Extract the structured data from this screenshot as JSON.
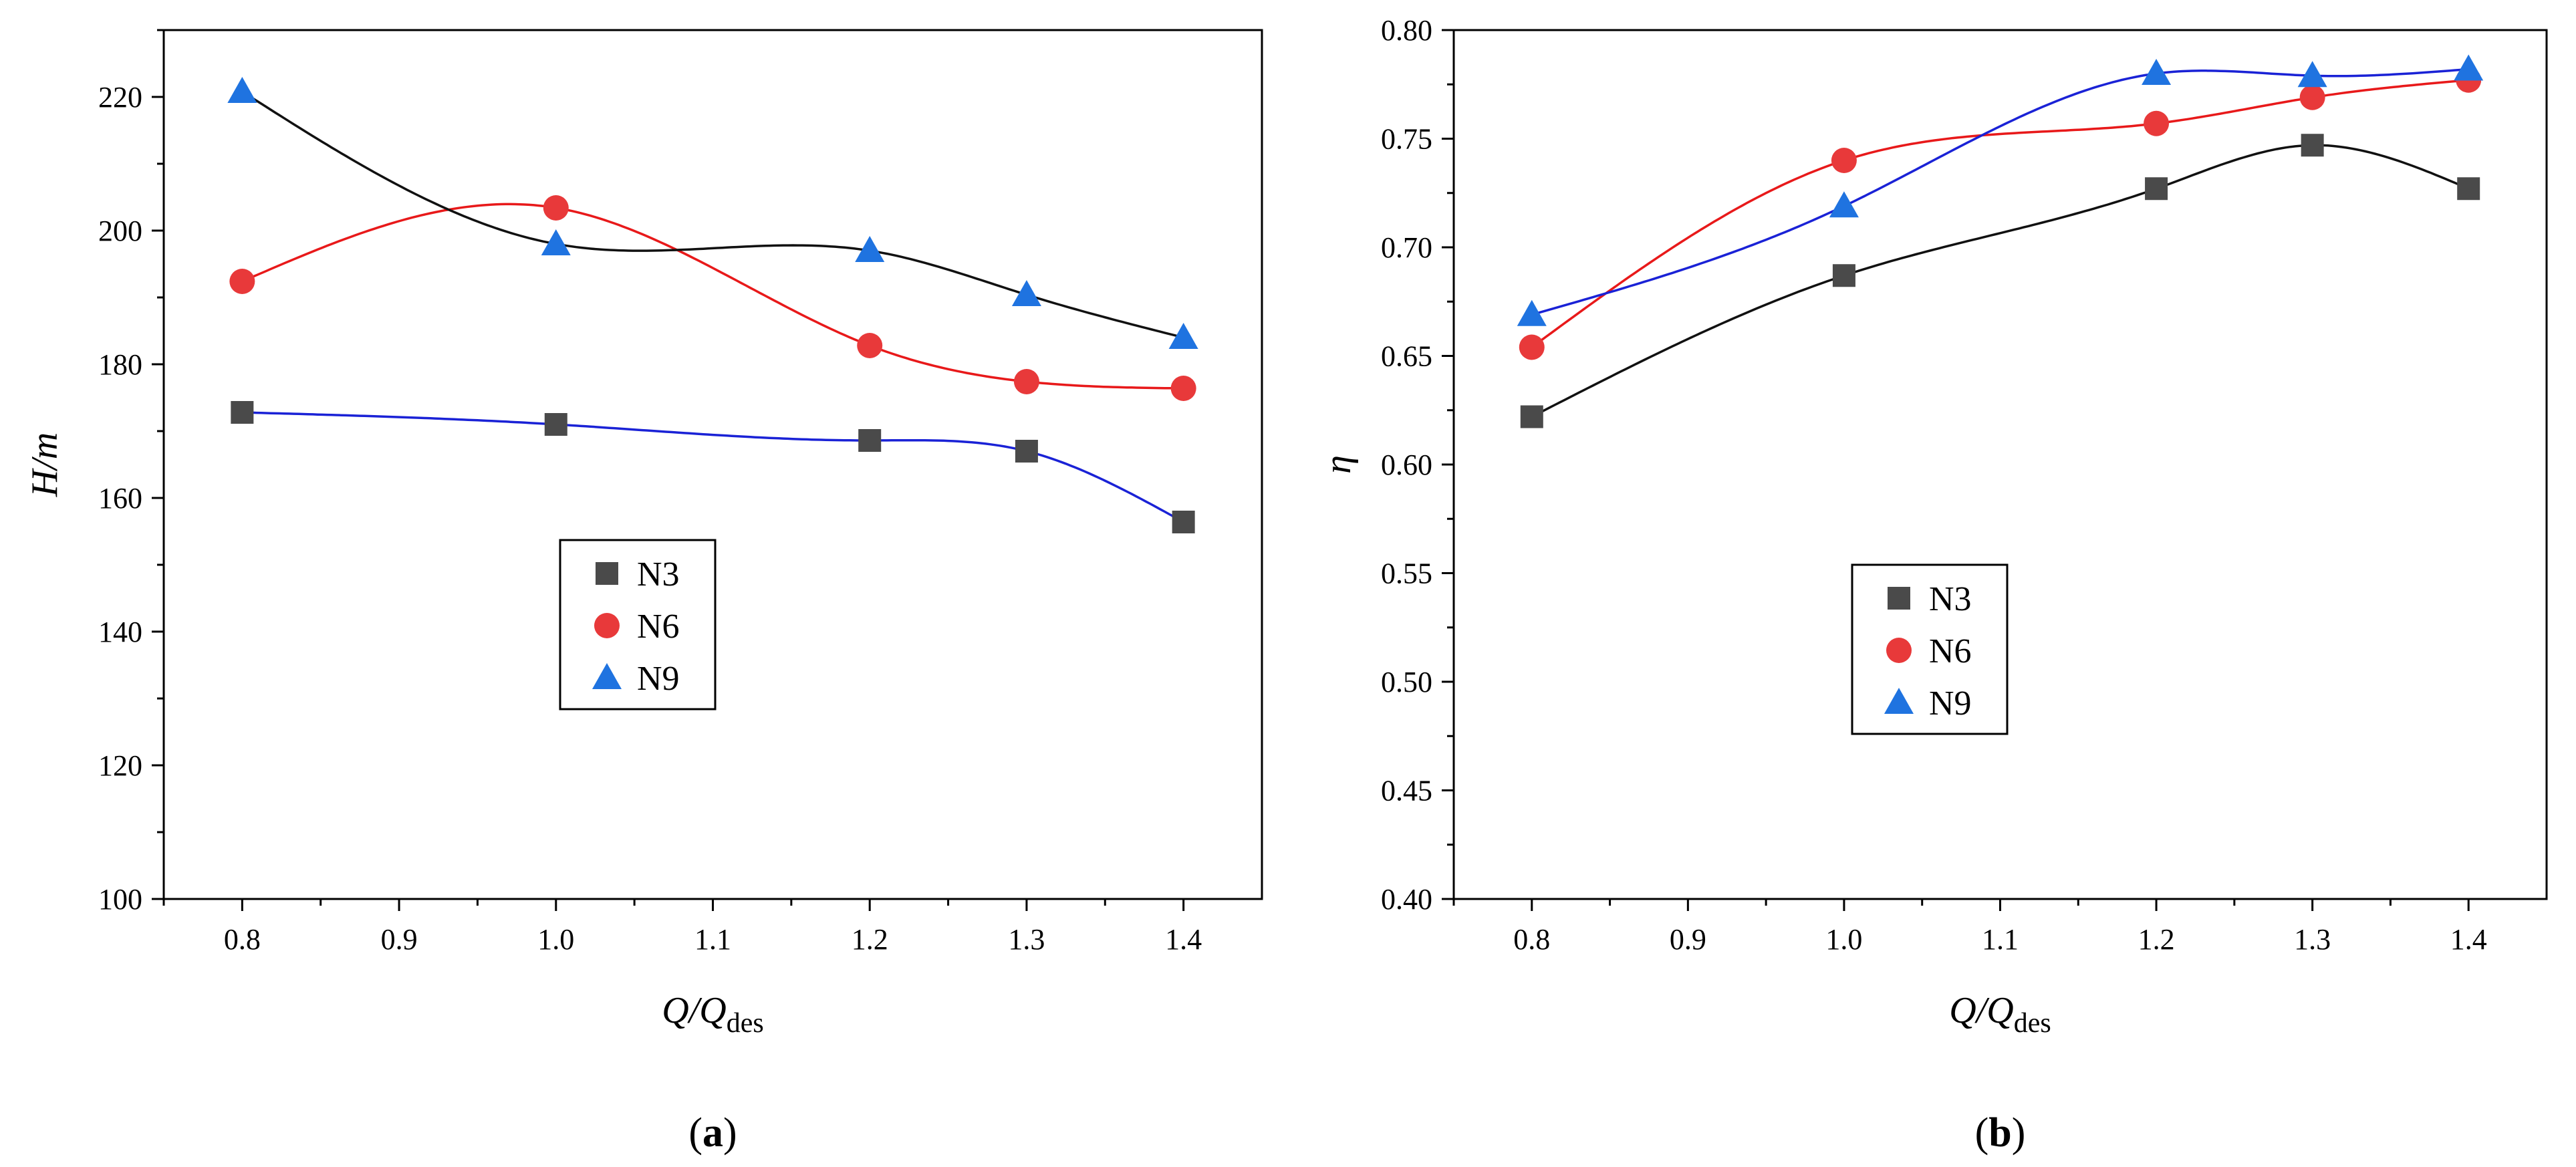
{
  "chart_data": [
    {
      "type": "scatter",
      "panel_label": "a",
      "xlabel": "Q/Q",
      "xlabel_sub": "des",
      "ylabel": "H/m",
      "xlim": [
        0.75,
        1.45
      ],
      "ylim": [
        100,
        230
      ],
      "xticks": [
        0.8,
        0.9,
        1.0,
        1.1,
        1.2,
        1.3,
        1.4
      ],
      "xtick_labels": [
        "0.8",
        "0.9",
        "1.0",
        "1.1",
        "1.2",
        "1.3",
        "1.4"
      ],
      "yticks": [
        100,
        120,
        140,
        160,
        180,
        200,
        220
      ],
      "ytick_labels": [
        "100",
        "120",
        "140",
        "160",
        "180",
        "200",
        "220"
      ],
      "legend": [
        "N3",
        "N6",
        "N9"
      ],
      "series": [
        {
          "name": "N3",
          "marker": "square",
          "color": "#4a4a4a",
          "line_color": "#1a22d6",
          "x": [
            0.8,
            1.0,
            1.2,
            1.3,
            1.4
          ],
          "y": [
            172.8,
            171.0,
            168.6,
            167.0,
            156.4
          ]
        },
        {
          "name": "N6",
          "marker": "circle",
          "color": "#e8393a",
          "line_color": "#e8191a",
          "x": [
            0.8,
            1.0,
            1.2,
            1.3,
            1.4
          ],
          "y": [
            192.4,
            203.4,
            182.8,
            177.4,
            176.4
          ]
        },
        {
          "name": "N9",
          "marker": "triangle",
          "color": "#1f73e0",
          "line_color": "#111111",
          "x": [
            0.8,
            1.0,
            1.2,
            1.3,
            1.4
          ],
          "y": [
            220.8,
            198.0,
            197.0,
            190.4,
            184.0
          ]
        }
      ]
    },
    {
      "type": "scatter",
      "panel_label": "b",
      "xlabel": "Q/Q",
      "xlabel_sub": "des",
      "ylabel": "η",
      "xlim": [
        0.75,
        1.45
      ],
      "ylim": [
        0.4,
        0.8
      ],
      "xticks": [
        0.8,
        0.9,
        1.0,
        1.1,
        1.2,
        1.3,
        1.4
      ],
      "xtick_labels": [
        "0.8",
        "0.9",
        "1.0",
        "1.1",
        "1.2",
        "1.3",
        "1.4"
      ],
      "yticks": [
        0.4,
        0.45,
        0.5,
        0.55,
        0.6,
        0.65,
        0.7,
        0.75,
        0.8
      ],
      "ytick_labels": [
        "0.40",
        "0.45",
        "0.50",
        "0.55",
        "0.60",
        "0.65",
        "0.70",
        "0.75",
        "0.80"
      ],
      "legend": [
        "N3",
        "N6",
        "N9"
      ],
      "series": [
        {
          "name": "N3",
          "marker": "square",
          "color": "#4a4a4a",
          "line_color": "#111111",
          "x": [
            0.8,
            1.0,
            1.2,
            1.3,
            1.4
          ],
          "y": [
            0.622,
            0.687,
            0.727,
            0.747,
            0.727
          ]
        },
        {
          "name": "N6",
          "marker": "circle",
          "color": "#e8393a",
          "line_color": "#e8191a",
          "x": [
            0.8,
            1.0,
            1.2,
            1.3,
            1.4
          ],
          "y": [
            0.654,
            0.74,
            0.757,
            0.769,
            0.777
          ]
        },
        {
          "name": "N9",
          "marker": "triangle",
          "color": "#1f73e0",
          "line_color": "#1a22d6",
          "x": [
            0.8,
            1.0,
            1.2,
            1.3,
            1.4
          ],
          "y": [
            0.669,
            0.719,
            0.78,
            0.779,
            0.782
          ]
        }
      ]
    }
  ]
}
